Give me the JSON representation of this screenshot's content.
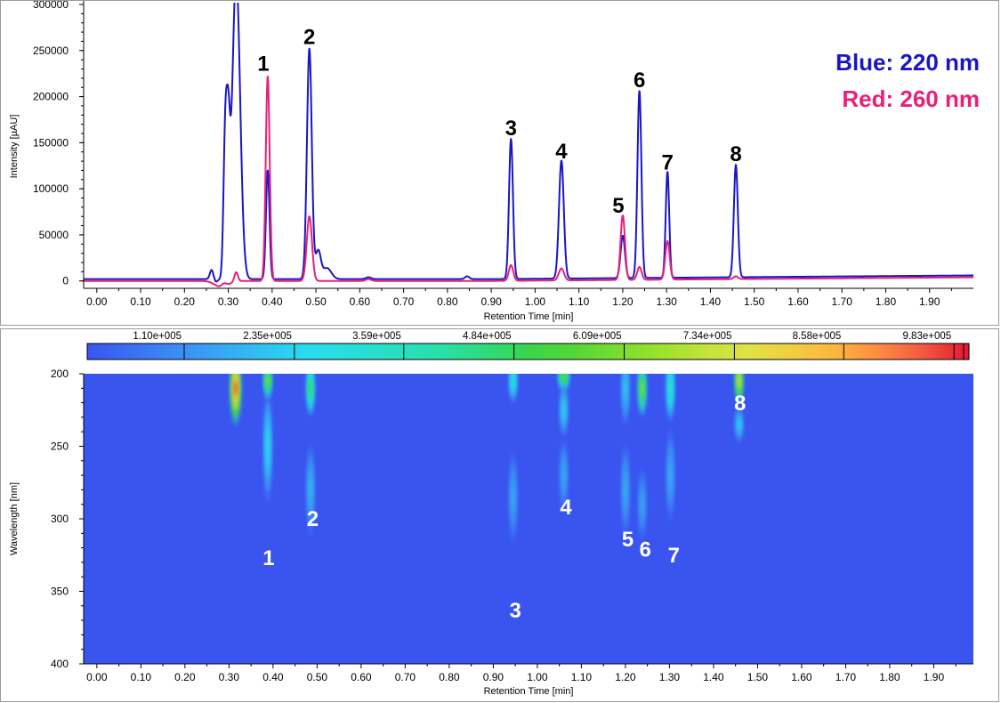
{
  "chart_data": [
    {
      "type": "line",
      "xlabel": "Retention Time [min]",
      "ylabel": "Intensity [µAU]",
      "xlim": [
        -0.03,
        2.0
      ],
      "ylim": [
        -8000,
        300000
      ],
      "x_ticks": [
        "0.00",
        "0.10",
        "0.20",
        "0.30",
        "0.40",
        "0.50",
        "0.60",
        "0.70",
        "0.80",
        "0.90",
        "1.00",
        "1.10",
        "1.20",
        "1.30",
        "1.40",
        "1.50",
        "1.60",
        "1.70",
        "1.80",
        "1.90"
      ],
      "y_ticks": [
        "0",
        "50000",
        "100000",
        "150000",
        "200000",
        "250000",
        "300000"
      ],
      "grid": false,
      "legend": [
        {
          "text": "Blue: 220 nm",
          "color": "#1a16c4"
        },
        {
          "text": "Red: 260 nm",
          "color": "#e8207a"
        }
      ],
      "series": [
        {
          "color": "#1a16c4",
          "baseline": 2000,
          "baseline_end": 6000,
          "peaks": [
            {
              "x": 0.262,
              "y": 10000,
              "w": 0.004
            },
            {
              "x": 0.293,
              "y": 150000,
              "w": 0.004
            },
            {
              "x": 0.3,
              "y": 130000,
              "w": 0.004
            },
            {
              "x": 0.318,
              "y": 330000,
              "w": 0.009
            },
            {
              "x": 0.39,
              "y": 118000,
              "w": 0.004
            },
            {
              "x": 0.485,
              "y": 250000,
              "w": 0.0055
            },
            {
              "x": 0.505,
              "y": 30000,
              "w": 0.006
            },
            {
              "x": 0.525,
              "y": 12000,
              "w": 0.01
            },
            {
              "x": 0.62,
              "y": 2000,
              "w": 0.006
            },
            {
              "x": 0.845,
              "y": 3000,
              "w": 0.005
            },
            {
              "x": 0.945,
              "y": 152000,
              "w": 0.0045
            },
            {
              "x": 1.06,
              "y": 128000,
              "w": 0.0055
            },
            {
              "x": 1.2,
              "y": 46000,
              "w": 0.005
            },
            {
              "x": 1.238,
              "y": 203000,
              "w": 0.0045
            },
            {
              "x": 1.302,
              "y": 115000,
              "w": 0.004
            },
            {
              "x": 1.458,
              "y": 122000,
              "w": 0.0045
            }
          ],
          "dips": [
            {
              "x": 0.272,
              "y": -3000,
              "w": 0.004
            }
          ]
        },
        {
          "color": "#e8207a",
          "baseline": 0,
          "baseline_end": 4000,
          "peaks": [
            {
              "x": 0.29,
              "y": 4000,
              "w": 0.006
            },
            {
              "x": 0.318,
              "y": 10000,
              "w": 0.004
            },
            {
              "x": 0.39,
              "y": 222000,
              "w": 0.0045
            },
            {
              "x": 0.485,
              "y": 70000,
              "w": 0.006
            },
            {
              "x": 0.62,
              "y": 2000,
              "w": 0.006
            },
            {
              "x": 0.945,
              "y": 17000,
              "w": 0.005
            },
            {
              "x": 1.06,
              "y": 13000,
              "w": 0.006
            },
            {
              "x": 1.2,
              "y": 70000,
              "w": 0.005
            },
            {
              "x": 1.238,
              "y": 14000,
              "w": 0.005
            },
            {
              "x": 1.302,
              "y": 42000,
              "w": 0.005
            },
            {
              "x": 1.458,
              "y": 3000,
              "w": 0.005
            }
          ],
          "dips": [
            {
              "x": 0.285,
              "y": -7000,
              "w": 0.015
            }
          ]
        }
      ],
      "annotations": [
        {
          "text": "1",
          "x": 0.38,
          "y": 228000
        },
        {
          "text": "2",
          "x": 0.485,
          "y": 257000
        },
        {
          "text": "3",
          "x": 0.945,
          "y": 158000
        },
        {
          "text": "4",
          "x": 1.06,
          "y": 133000
        },
        {
          "text": "5",
          "x": 1.19,
          "y": 74000
        },
        {
          "text": "6",
          "x": 1.238,
          "y": 210000
        },
        {
          "text": "7",
          "x": 1.302,
          "y": 121000
        },
        {
          "text": "8",
          "x": 1.458,
          "y": 130000
        }
      ]
    },
    {
      "type": "heatmap",
      "xlabel": "Retention Time [min]",
      "ylabel": "Wavelength [nm]",
      "xlim": [
        -0.03,
        1.99
      ],
      "ylim": [
        200,
        400
      ],
      "x_ticks": [
        "0.00",
        "0.10",
        "0.20",
        "0.30",
        "0.40",
        "0.50",
        "0.60",
        "0.70",
        "0.80",
        "0.90",
        "1.00",
        "1.10",
        "1.20",
        "1.30",
        "1.40",
        "1.50",
        "1.60",
        "1.70",
        "1.80",
        "1.90"
      ],
      "y_ticks": [
        "200",
        "250",
        "300",
        "350",
        "400"
      ],
      "colorbar": {
        "labels": [
          "1.10e+005",
          "2.35e+005",
          "3.59e+005",
          "4.84e+005",
          "6.09e+005",
          "7.34e+005",
          "8.58e+005",
          "9.83e+005"
        ],
        "min": 0,
        "max": 1000000
      },
      "background_color": "#3a54f0",
      "spots": [
        {
          "x": 0.315,
          "y": 210,
          "w": 0.006,
          "h": 20,
          "v": 1000000
        },
        {
          "x": 0.388,
          "y": 205,
          "w": 0.004,
          "h": 10,
          "v": 650000
        },
        {
          "x": 0.388,
          "y": 250,
          "w": 0.003,
          "h": 30,
          "v": 280000
        },
        {
          "x": 0.485,
          "y": 210,
          "w": 0.004,
          "h": 15,
          "v": 520000
        },
        {
          "x": 0.485,
          "y": 280,
          "w": 0.003,
          "h": 25,
          "v": 200000
        },
        {
          "x": 0.945,
          "y": 205,
          "w": 0.003,
          "h": 12,
          "v": 330000
        },
        {
          "x": 0.945,
          "y": 285,
          "w": 0.003,
          "h": 25,
          "v": 170000
        },
        {
          "x": 1.06,
          "y": 202,
          "w": 0.006,
          "h": 8,
          "v": 600000
        },
        {
          "x": 1.06,
          "y": 225,
          "w": 0.004,
          "h": 15,
          "v": 250000
        },
        {
          "x": 1.06,
          "y": 270,
          "w": 0.003,
          "h": 20,
          "v": 170000
        },
        {
          "x": 1.2,
          "y": 210,
          "w": 0.003,
          "h": 20,
          "v": 230000
        },
        {
          "x": 1.2,
          "y": 280,
          "w": 0.003,
          "h": 25,
          "v": 180000
        },
        {
          "x": 1.238,
          "y": 210,
          "w": 0.004,
          "h": 15,
          "v": 650000
        },
        {
          "x": 1.238,
          "y": 290,
          "w": 0.003,
          "h": 20,
          "v": 160000
        },
        {
          "x": 1.302,
          "y": 210,
          "w": 0.003,
          "h": 18,
          "v": 380000
        },
        {
          "x": 1.302,
          "y": 270,
          "w": 0.003,
          "h": 25,
          "v": 180000
        },
        {
          "x": 1.458,
          "y": 205,
          "w": 0.004,
          "h": 12,
          "v": 820000
        },
        {
          "x": 1.458,
          "y": 235,
          "w": 0.003,
          "h": 10,
          "v": 240000
        }
      ],
      "annotations": [
        {
          "text": "1",
          "x": 0.39,
          "y": 332
        },
        {
          "text": "2",
          "x": 0.49,
          "y": 305
        },
        {
          "text": "3",
          "x": 0.95,
          "y": 368
        },
        {
          "text": "4",
          "x": 1.065,
          "y": 297
        },
        {
          "text": "5",
          "x": 1.205,
          "y": 319
        },
        {
          "text": "6",
          "x": 1.245,
          "y": 326
        },
        {
          "text": "7",
          "x": 1.31,
          "y": 330
        },
        {
          "text": "8",
          "x": 1.46,
          "y": 225
        }
      ]
    }
  ]
}
